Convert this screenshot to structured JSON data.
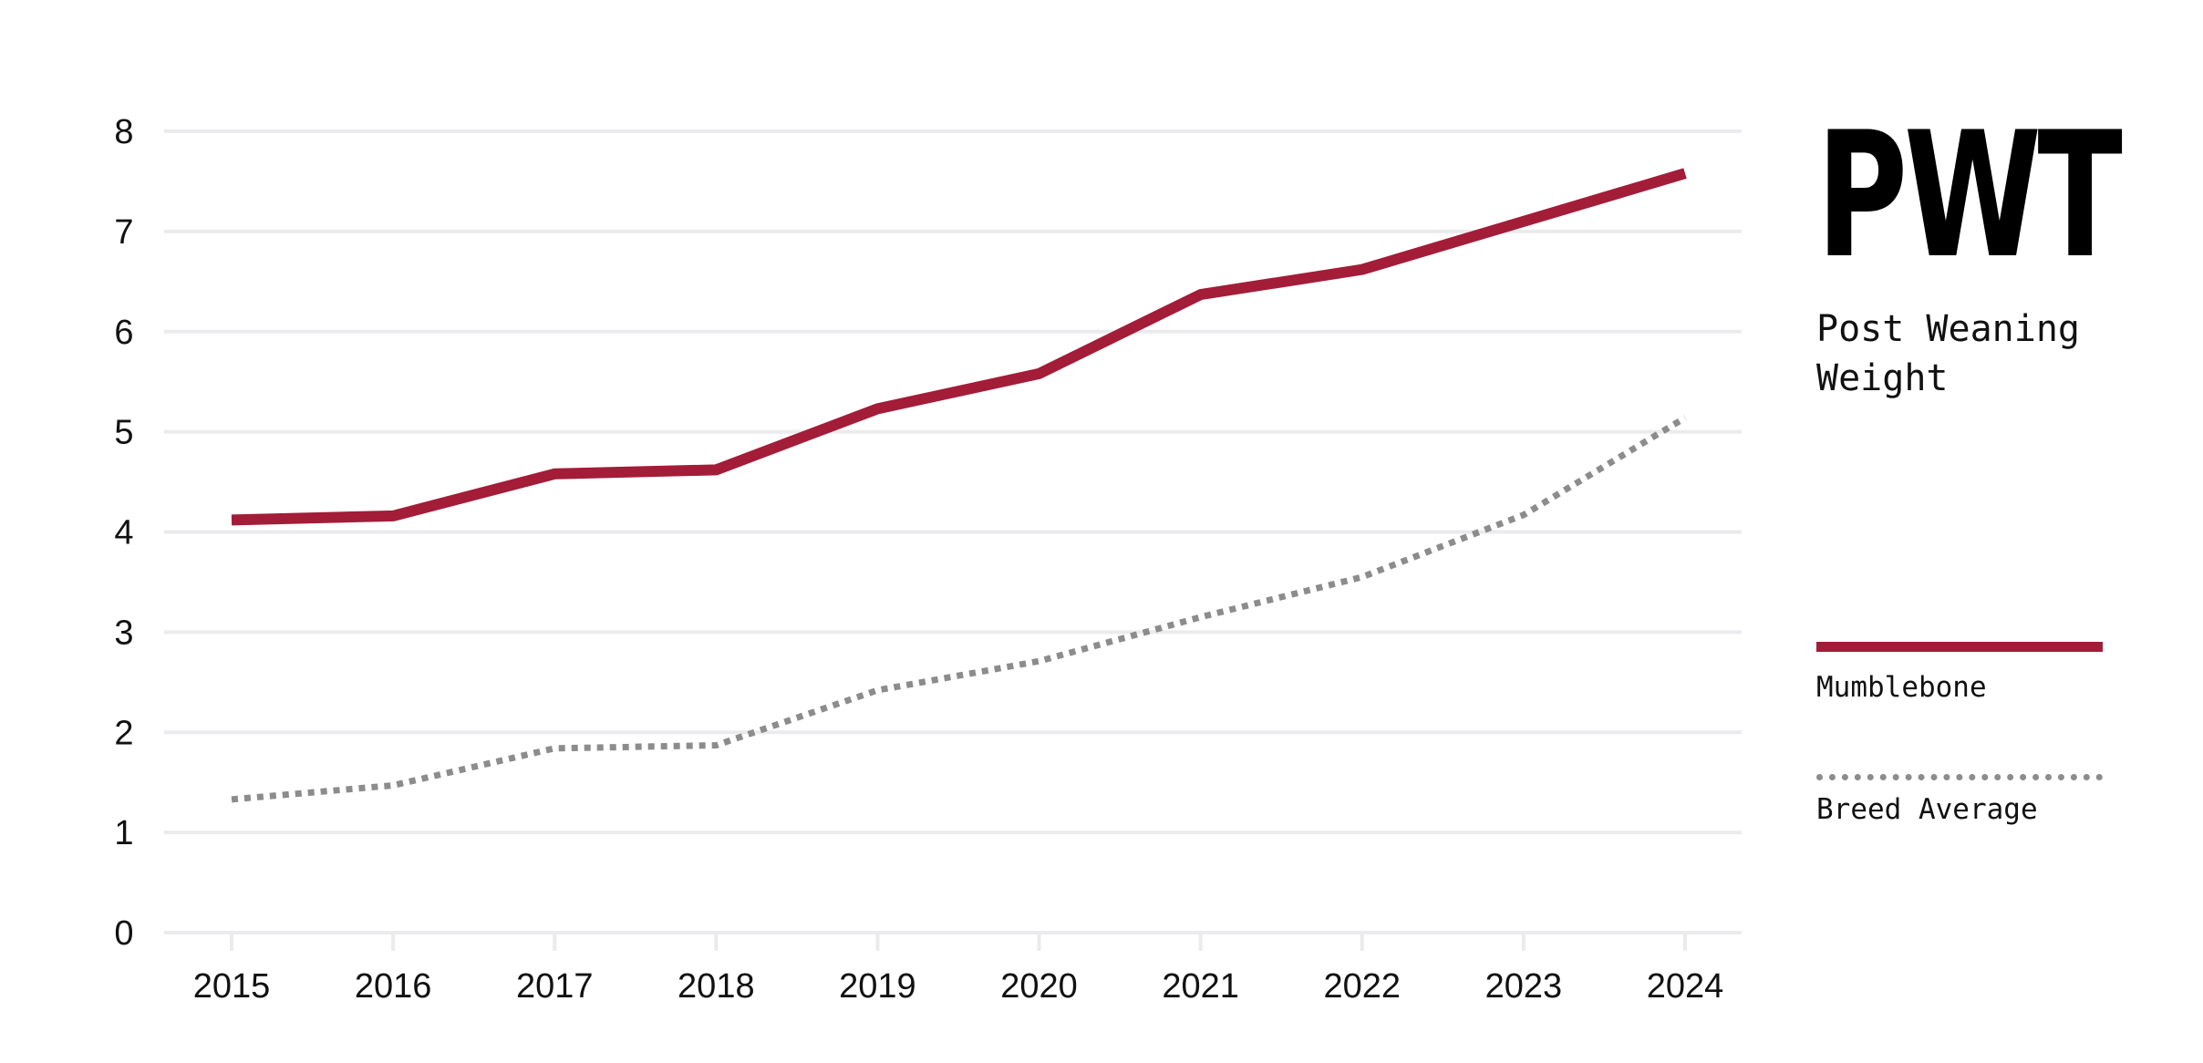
{
  "chart_data": {
    "type": "line",
    "x": [
      "2015",
      "2016",
      "2017",
      "2018",
      "2019",
      "2020",
      "2021",
      "2022",
      "2023",
      "2024"
    ],
    "series": [
      {
        "name": "Mumblebone",
        "values": [
          4.12,
          4.16,
          4.58,
          4.62,
          5.23,
          5.58,
          6.37,
          6.62,
          7.1,
          7.58
        ],
        "color": "#a31c38",
        "style": "solid"
      },
      {
        "name": "Breed Average",
        "values": [
          1.33,
          1.47,
          1.84,
          1.87,
          2.42,
          2.71,
          3.15,
          3.55,
          4.17,
          5.14
        ],
        "color": "#8c8c8c",
        "style": "dotted"
      }
    ],
    "ylim": [
      0,
      8
    ],
    "yticks": [
      0,
      1,
      2,
      3,
      4,
      5,
      6,
      7,
      8
    ],
    "grid": true,
    "gridColor": "#ebebee",
    "legend_position": "right"
  },
  "side": {
    "title": "PWT",
    "subtitle": "Post Weaning Weight"
  }
}
